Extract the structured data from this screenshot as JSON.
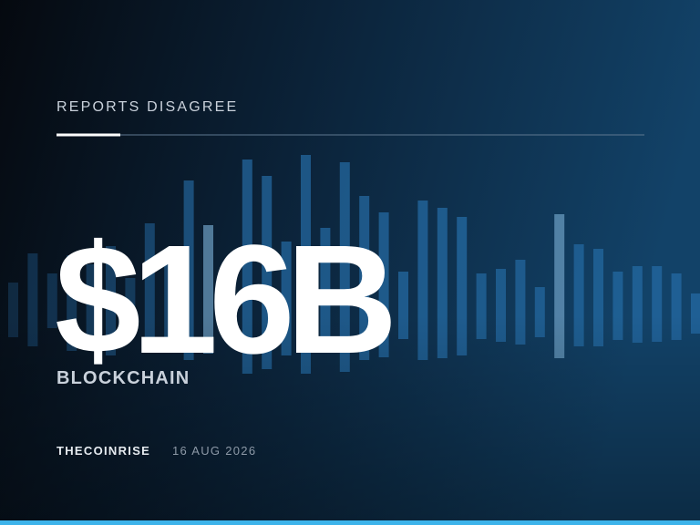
{
  "header": {
    "kicker": "REPORTS DISAGREE"
  },
  "headline": {
    "figure": "$16B",
    "topic": "BLOCKCHAIN"
  },
  "footer": {
    "source": "THECOINRISE",
    "date": "16 AUG 2026"
  }
}
